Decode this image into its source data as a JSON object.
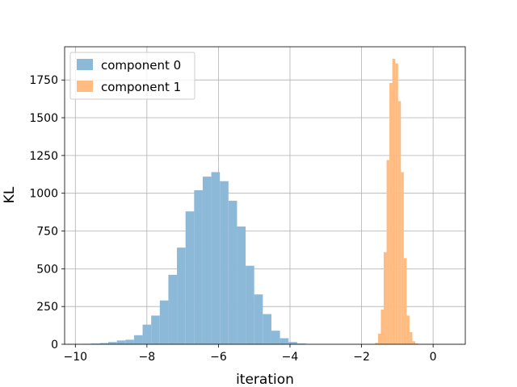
{
  "chart_data": {
    "type": "bar",
    "subtype": "histogram",
    "title": "",
    "xlabel": "iteration",
    "ylabel": "KL",
    "xlim": [
      -10.3,
      0.9
    ],
    "ylim": [
      0,
      1970
    ],
    "xticks": [
      -10,
      -8,
      -6,
      -4,
      -2,
      0
    ],
    "xtick_labels": [
      "−10",
      "−8",
      "−6",
      "−4",
      "−2",
      "0"
    ],
    "yticks": [
      0,
      250,
      500,
      750,
      1000,
      1250,
      1500,
      1750
    ],
    "ytick_labels": [
      "0",
      "250",
      "500",
      "750",
      "1000",
      "1250",
      "1500",
      "1750"
    ],
    "grid": true,
    "legend_position": "top-left",
    "series": [
      {
        "name": "component 0",
        "color": "#8db9d9",
        "bin_edges": [
          -9.8,
          -9.56,
          -9.32,
          -9.08,
          -8.84,
          -8.6,
          -8.36,
          -8.12,
          -7.88,
          -7.64,
          -7.4,
          -7.16,
          -6.92,
          -6.68,
          -6.44,
          -6.2,
          -5.96,
          -5.72,
          -5.48,
          -5.24,
          -5.0,
          -4.76,
          -4.52,
          -4.28,
          -4.04,
          -3.8,
          -3.56
        ],
        "counts": [
          3,
          5,
          8,
          15,
          25,
          30,
          60,
          130,
          190,
          290,
          460,
          640,
          880,
          1020,
          1110,
          1140,
          1080,
          950,
          780,
          520,
          330,
          200,
          90,
          40,
          15,
          5
        ]
      },
      {
        "name": "component 1",
        "color": "#ffbb80",
        "bin_edges": [
          -1.62,
          -1.54,
          -1.46,
          -1.38,
          -1.3,
          -1.22,
          -1.14,
          -1.06,
          -0.98,
          -0.9,
          -0.82,
          -0.74,
          -0.66,
          -0.58,
          -0.5,
          -0.42
        ],
        "counts": [
          10,
          70,
          230,
          610,
          1220,
          1730,
          1890,
          1860,
          1610,
          1140,
          570,
          190,
          80,
          20,
          5
        ]
      }
    ]
  }
}
